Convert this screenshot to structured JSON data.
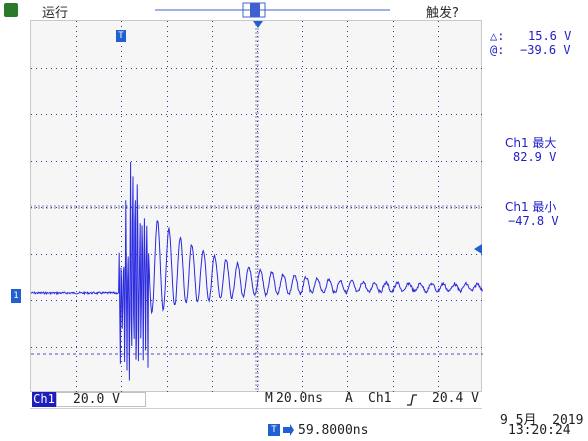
{
  "status": {
    "run_label": "运行",
    "trigger_label": "触发?"
  },
  "cursor_readout": {
    "delta_symbol": "△:",
    "delta_value": "15.6 V",
    "at_symbol": "@:",
    "at_value": "−39.6 V"
  },
  "measurements": [
    {
      "label": "Ch1 最大",
      "value": "82.9 V"
    },
    {
      "label": "Ch1 最小",
      "value": "−47.8 V"
    }
  ],
  "channel": {
    "name": "Ch1",
    "scale": "20.0 V"
  },
  "timebase": {
    "label": "M",
    "value": "20.0ns"
  },
  "trigger": {
    "mode": "A",
    "source": "Ch1",
    "slope_icon": "rising-edge-icon",
    "level": "20.4 V"
  },
  "trigger_position": {
    "value": "59.8000ns"
  },
  "datetime": {
    "date": "9 5月  2019",
    "time": "13:20:24"
  },
  "colors": {
    "trace": "#2a2ae0",
    "grid": "#3a3a8a",
    "marker": "#2060d0",
    "accent": "#1e1ebe"
  }
}
